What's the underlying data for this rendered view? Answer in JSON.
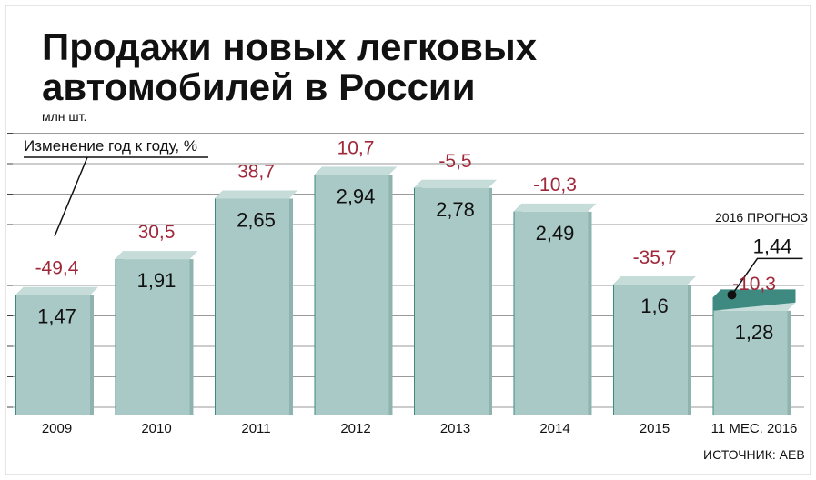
{
  "colors": {
    "bar_front": "#a9c9c6",
    "bar_side": "#3e8a80",
    "bar_top": "#c5dcd9",
    "change_text": "#a0283a",
    "grid": "#9a9a9a"
  },
  "chart_data": {
    "type": "bar",
    "title_line1": "Продажи новых легковых",
    "title_line2": "автомобилей в России",
    "unit_label": "млн шт.",
    "legend_label": "Изменение год к году, %",
    "categories": [
      "2009",
      "2010",
      "2011",
      "2012",
      "2013",
      "2014",
      "2015",
      "11 МЕС. 2016"
    ],
    "values": [
      1.47,
      1.91,
      2.65,
      2.94,
      2.78,
      2.49,
      1.6,
      1.28
    ],
    "value_labels": [
      "1,47",
      "1,91",
      "2,65",
      "2,94",
      "2,78",
      "2,49",
      "1,6",
      "1,28"
    ],
    "changes": [
      "-49,4",
      "30,5",
      "38,7",
      "10,7",
      "-5,5",
      "-10,3",
      "-35,7",
      "-10,3"
    ],
    "forecast": {
      "label": "2016 ПРОГНОЗ",
      "value": 1.44,
      "value_label": "1,44"
    },
    "grid": true,
    "source": "ИСТОЧНИК: АЕВ"
  }
}
